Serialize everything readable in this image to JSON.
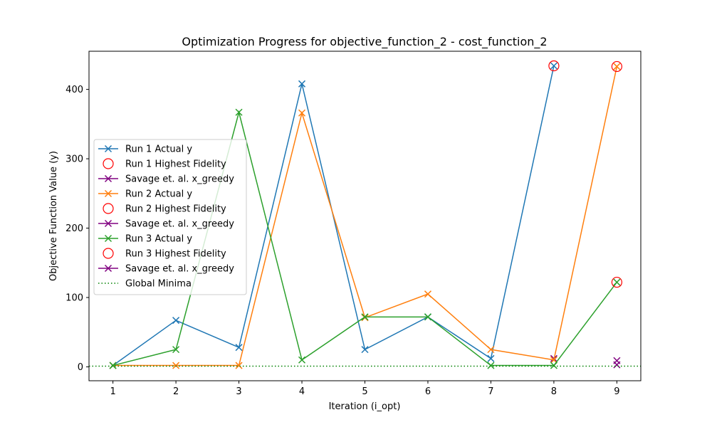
{
  "chart_data": {
    "type": "line",
    "title": "Optimization Progress for objective_function_2 - cost_function_2",
    "xlabel": "Iteration (i_opt)",
    "ylabel": "Objective Function Value (y)",
    "xlim": [
      0.62,
      9.38
    ],
    "ylim": [
      -20,
      455
    ],
    "xticks": [
      1,
      2,
      3,
      4,
      5,
      6,
      7,
      8,
      9
    ],
    "yticks": [
      0,
      100,
      200,
      300,
      400
    ],
    "legend_position": "center-left",
    "series": [
      {
        "name": "Run 1 Actual y",
        "kind": "line-x",
        "color": "#1f77b4",
        "x": [
          1,
          2,
          3,
          4,
          5,
          6,
          7,
          8
        ],
        "y": [
          2,
          67,
          28,
          408,
          25,
          72,
          12,
          434
        ]
      },
      {
        "name": "Run 1 Highest Fidelity",
        "kind": "circle",
        "color": "#ff0000",
        "x": [
          8
        ],
        "y": [
          434
        ]
      },
      {
        "name": "Savage et. al. x_greedy",
        "kind": "line-x",
        "color": "#800080",
        "x": [
          8
        ],
        "y": [
          12
        ]
      },
      {
        "name": "Run 2 Actual y",
        "kind": "line-x",
        "color": "#ff7f0e",
        "x": [
          1,
          2,
          3,
          4,
          5,
          6,
          7,
          8,
          9
        ],
        "y": [
          2,
          2,
          2,
          366,
          71,
          105,
          25,
          10,
          433
        ]
      },
      {
        "name": "Run 2 Highest Fidelity",
        "kind": "circle",
        "color": "#ff0000",
        "x": [
          9
        ],
        "y": [
          433
        ]
      },
      {
        "name": "Savage et. al. x_greedy",
        "kind": "line-x",
        "color": "#800080",
        "x": [
          9
        ],
        "y": [
          9
        ]
      },
      {
        "name": "Run 3 Actual y",
        "kind": "line-x",
        "color": "#2ca02c",
        "x": [
          1,
          2,
          3,
          4,
          5,
          6,
          7,
          8,
          9
        ],
        "y": [
          2,
          25,
          367,
          10,
          72,
          72,
          2,
          2,
          122
        ]
      },
      {
        "name": "Run 3 Highest Fidelity",
        "kind": "circle",
        "color": "#ff0000",
        "x": [
          9
        ],
        "y": [
          122
        ]
      },
      {
        "name": "Savage et. al. x_greedy",
        "kind": "line-x",
        "color": "#800080",
        "x": [
          9
        ],
        "y": [
          3
        ]
      },
      {
        "name": "Global Minima",
        "kind": "hline-dotted",
        "color": "#008000",
        "y": [
          1
        ]
      }
    ]
  }
}
